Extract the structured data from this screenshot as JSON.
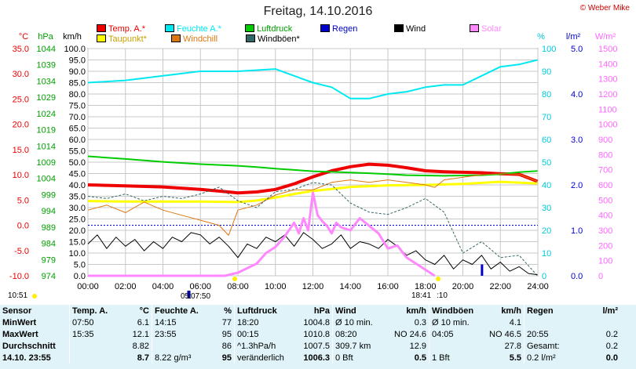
{
  "title": "Freitag, 14.10.2016",
  "copyright": "© Weber Mike",
  "legend": [
    {
      "label": "Temp. A.*",
      "color": "#ee0000"
    },
    {
      "label": "Feuchte A.*",
      "color": "#00e8f0"
    },
    {
      "label": "Luftdruck",
      "color": "#00cc00"
    },
    {
      "label": "Regen",
      "color": "#0000cc"
    },
    {
      "label": "Wind",
      "color": "#000000"
    },
    {
      "label": "Solar",
      "color": "#ff88ff"
    },
    {
      "label": "Taupunkt*",
      "color": "#ffff00"
    },
    {
      "label": "Windchill",
      "color": "#dd7711"
    },
    {
      "label": "Windböen*",
      "color": "#336666"
    }
  ],
  "axis_units": {
    "temp": "°C",
    "pressure": "hPa",
    "wind": "km/h",
    "humidity": "%",
    "rain": "l/m²",
    "solar": "W/m²"
  },
  "sun": {
    "rise": "07:50",
    "set": "18:41",
    "left_time": "10:51",
    "rise_prefix": "05:",
    "set_suffix": ":10"
  },
  "chart_data": {
    "type": "line",
    "title": "Freitag, 14.10.2016",
    "x_ticks": [
      "00:00",
      "02:00",
      "04:00",
      "06:00",
      "08:00",
      "10:00",
      "12:00",
      "14:00",
      "16:00",
      "18:00",
      "20:00",
      "22:00",
      "24:00"
    ],
    "axes": {
      "temp": {
        "unit": "°C",
        "ylim": [
          -10,
          35
        ],
        "ticks": [
          "35.0",
          "30.0",
          "25.0",
          "20.0",
          "15.0",
          "10.0",
          "5.0",
          "0.0",
          "-5.0",
          "-10.0"
        ]
      },
      "pressure": {
        "unit": "hPa",
        "ylim": [
          974,
          1044
        ],
        "ticks": [
          "1044",
          "1039",
          "1034",
          "1029",
          "1024",
          "1019",
          "1014",
          "1009",
          "1004",
          "999",
          "994",
          "989",
          "984",
          "979",
          "974"
        ]
      },
      "wind": {
        "unit": "km/h",
        "ylim": [
          0,
          100
        ],
        "ticks": [
          "100.0",
          "95.0",
          "90.0",
          "85.0",
          "80.0",
          "75.0",
          "70.0",
          "65.0",
          "60.0",
          "55.0",
          "50.0",
          "45.0",
          "40.0",
          "35.0",
          "30.0",
          "25.0",
          "20.0",
          "15.0",
          "10.0",
          "5.0",
          "0.0"
        ]
      },
      "humidity": {
        "unit": "%",
        "ylim": [
          0,
          100
        ],
        "ticks": [
          "100",
          "90",
          "80",
          "70",
          "60",
          "50",
          "40",
          "30",
          "20",
          "10",
          "0"
        ]
      },
      "rain": {
        "unit": "l/m²",
        "ylim": [
          0,
          5
        ],
        "ticks": [
          "5.0",
          "4.0",
          "3.0",
          "2.0",
          "1.0",
          "0.0"
        ]
      },
      "solar": {
        "unit": "W/m²",
        "ylim": [
          0,
          1500
        ],
        "ticks": [
          "1500",
          "1400",
          "1300",
          "1200",
          "1100",
          "1000",
          "900",
          "800",
          "700",
          "600",
          "500",
          "400",
          "300",
          "200",
          "100",
          "0"
        ]
      }
    },
    "series": [
      {
        "name": "Temp. A.*",
        "axis": "temp",
        "color": "#ee0000",
        "width": 4,
        "x": [
          0,
          2,
          4,
          6,
          7.5,
          8,
          9,
          10,
          11,
          12,
          13,
          14,
          15,
          15.5,
          16,
          17,
          18,
          19,
          20,
          21,
          22,
          23,
          23.98
        ],
        "y": [
          8.0,
          7.8,
          7.6,
          7.1,
          6.6,
          6.4,
          6.6,
          7.1,
          8.2,
          9.6,
          10.8,
          11.6,
          12.1,
          12.0,
          11.9,
          11.4,
          10.8,
          10.6,
          10.5,
          10.4,
          10.2,
          10.1,
          8.7
        ]
      },
      {
        "name": "Feuchte A.*",
        "axis": "humidity",
        "color": "#00e8f0",
        "width": 2,
        "x": [
          0,
          2,
          4,
          6,
          8,
          10,
          11,
          12,
          13,
          14,
          15,
          16,
          17,
          18,
          19,
          20,
          21,
          22,
          23,
          23.98
        ],
        "y": [
          85,
          86,
          88,
          90,
          90,
          91,
          88,
          85,
          83,
          78,
          78,
          80,
          81,
          83,
          84,
          84,
          88,
          92,
          93,
          95
        ]
      },
      {
        "name": "Luftdruck",
        "axis": "pressure",
        "color": "#00cc00",
        "width": 2,
        "x": [
          0,
          2,
          4,
          6,
          8,
          9,
          10,
          11,
          12,
          13,
          14,
          15,
          16,
          17,
          18,
          19,
          20,
          21,
          22,
          23,
          23.98
        ],
        "y": [
          1010.8,
          1010.0,
          1009.1,
          1008.4,
          1007.9,
          1007.5,
          1007.0,
          1006.6,
          1006.2,
          1006.0,
          1005.8,
          1005.6,
          1005.3,
          1005.0,
          1004.9,
          1004.8,
          1004.9,
          1005.0,
          1005.3,
          1005.9,
          1006.3
        ]
      },
      {
        "name": "Taupunkt*",
        "axis": "temp",
        "color": "#ffff00",
        "width": 3,
        "x": [
          0,
          2,
          4,
          6,
          8,
          9,
          10,
          11,
          12,
          13,
          14,
          16,
          18,
          20,
          22,
          23.98
        ],
        "y": [
          4.8,
          4.7,
          4.7,
          4.7,
          4.6,
          4.9,
          5.5,
          6.2,
          6.8,
          7.2,
          7.6,
          7.9,
          8.0,
          8.2,
          8.6,
          8.3
        ]
      },
      {
        "name": "Windchill",
        "axis": "temp",
        "color": "#dd7711",
        "width": 1,
        "x": [
          0,
          1,
          2,
          3,
          4,
          5,
          6,
          7,
          7.5,
          8,
          9,
          10,
          11,
          12,
          13,
          14,
          15,
          16,
          17,
          18,
          18.5,
          19,
          20,
          21,
          22,
          23,
          23.98
        ],
        "y": [
          3.0,
          4.0,
          2.5,
          4.6,
          3.0,
          2.0,
          1.0,
          0.0,
          -2.0,
          3.0,
          4.0,
          6.0,
          7.0,
          7.0,
          8.5,
          9.0,
          8.5,
          9.0,
          8.5,
          8.0,
          7.5,
          9.0,
          9.5,
          10.0,
          10.2,
          10.1,
          8.7
        ]
      },
      {
        "name": "Windböen*",
        "axis": "wind",
        "color": "#336666",
        "width": 1,
        "dash": true,
        "x": [
          0,
          1,
          2,
          3,
          4,
          5,
          6,
          7,
          8,
          9,
          10,
          11,
          12,
          13,
          14,
          15,
          16,
          17,
          18,
          19,
          20,
          21,
          22,
          23,
          23.98
        ],
        "y": [
          35,
          34,
          36,
          33,
          35,
          34,
          36,
          39,
          33,
          30,
          37,
          38,
          41,
          40,
          32,
          28,
          27,
          30,
          34,
          28,
          10,
          15,
          8,
          9,
          0
        ]
      },
      {
        "name": "Wind",
        "axis": "wind",
        "color": "#000000",
        "width": 1,
        "x": [
          0,
          0.5,
          1,
          1.5,
          2,
          2.5,
          3,
          3.5,
          4,
          4.5,
          5,
          5.5,
          6,
          6.5,
          7,
          7.5,
          8,
          8.5,
          9,
          9.5,
          10,
          10.5,
          11,
          11.5,
          12,
          12.5,
          13,
          13.5,
          14,
          14.5,
          15,
          15.5,
          16,
          16.5,
          17,
          17.5,
          18,
          18.5,
          19,
          19.5,
          20,
          20.5,
          21,
          21.5,
          22,
          22.5,
          23,
          23.5,
          23.98
        ],
        "y": [
          14,
          18,
          12,
          17,
          13,
          16,
          11,
          15,
          12,
          17,
          15,
          19,
          18,
          14,
          17,
          13,
          8,
          14,
          12,
          17,
          15,
          18,
          13,
          19,
          16,
          12,
          14,
          18,
          12,
          15,
          14,
          12,
          16,
          13,
          9,
          11,
          7,
          5,
          9,
          3,
          7,
          5,
          9,
          3,
          6,
          2,
          4,
          1,
          0.5
        ]
      },
      {
        "name": "Solar",
        "axis": "solar",
        "color": "#ff88ff",
        "width": 3,
        "x": [
          0,
          7.3,
          8,
          8.5,
          9,
          9.5,
          10,
          10.5,
          11,
          11.25,
          11.5,
          11.75,
          12,
          12.25,
          12.5,
          12.75,
          13,
          13.25,
          13.5,
          14,
          14.5,
          15,
          15.5,
          16,
          16.5,
          17,
          17.5,
          18,
          18.5
        ],
        "y": [
          0,
          0,
          20,
          50,
          80,
          150,
          190,
          260,
          350,
          280,
          380,
          300,
          550,
          400,
          360,
          330,
          280,
          350,
          320,
          300,
          380,
          330,
          280,
          180,
          200,
          120,
          80,
          40,
          0
        ]
      }
    ],
    "rain_bars": {
      "x": [
        21.0
      ],
      "y": [
        0.25
      ]
    }
  },
  "stats": {
    "headers": {
      "sensor": "Sensor",
      "temp": "Temp. A.",
      "temp_unit": "°C",
      "hum": "Feuchte A.",
      "hum_unit": "%",
      "press": "Luftdruck",
      "press_unit": "hPa",
      "wind": "Wind",
      "wind_unit": "km/h",
      "gust": "Windböen",
      "gust_unit": "km/h",
      "rain": "Regen",
      "rain_unit": "l/m²"
    },
    "rows": [
      {
        "label": "MinWert",
        "temp_t": "07:50",
        "temp_v": "6.1",
        "hum_t": "14:15",
        "hum_v": "77",
        "press_t": "18:20",
        "press_v": "1004.8",
        "wind_t": "Ø 10 min.",
        "wind_v": "0.3",
        "gust_t": "Ø 10 min.",
        "gust_v": "4.1",
        "rain_t": "",
        "rain_v": ""
      },
      {
        "label": "MaxWert",
        "temp_t": "15:35",
        "temp_v": "12.1",
        "hum_t": "23:55",
        "hum_v": "95",
        "press_t": "00:15",
        "press_v": "1010.8",
        "wind_t": "08:20",
        "wind_m": "NO 24.6",
        "wind_v": "",
        "gust_t": "04:05",
        "gust_m": "NO 46.5",
        "gust_v": "",
        "rain_t": "20:55",
        "rain_v": "0.2"
      },
      {
        "label": "Durchschnitt",
        "temp_t": "",
        "temp_v": "8.82",
        "hum_t": "",
        "hum_v": "86",
        "press_t": "^1.3hPa/h",
        "press_v": "1007.5",
        "wind_t": "309.7 km",
        "wind_v": "12.9",
        "gust_t": "",
        "gust_v": "27.8",
        "rain_t": "Gesamt:",
        "rain_v": "0.2"
      },
      {
        "label": "14.10. 23:55",
        "temp_t": "",
        "temp_v": "8.7",
        "hum_t": "8.22 g/m³",
        "hum_v": "95",
        "press_t": "veränderlich",
        "press_v": "1006.3",
        "wind_t": "0 Bft",
        "wind_v": "0.5",
        "gust_t": "1 Bft",
        "gust_v": "5.5",
        "rain_t": "0.2 l/m²",
        "rain_v": "0.0"
      }
    ]
  }
}
